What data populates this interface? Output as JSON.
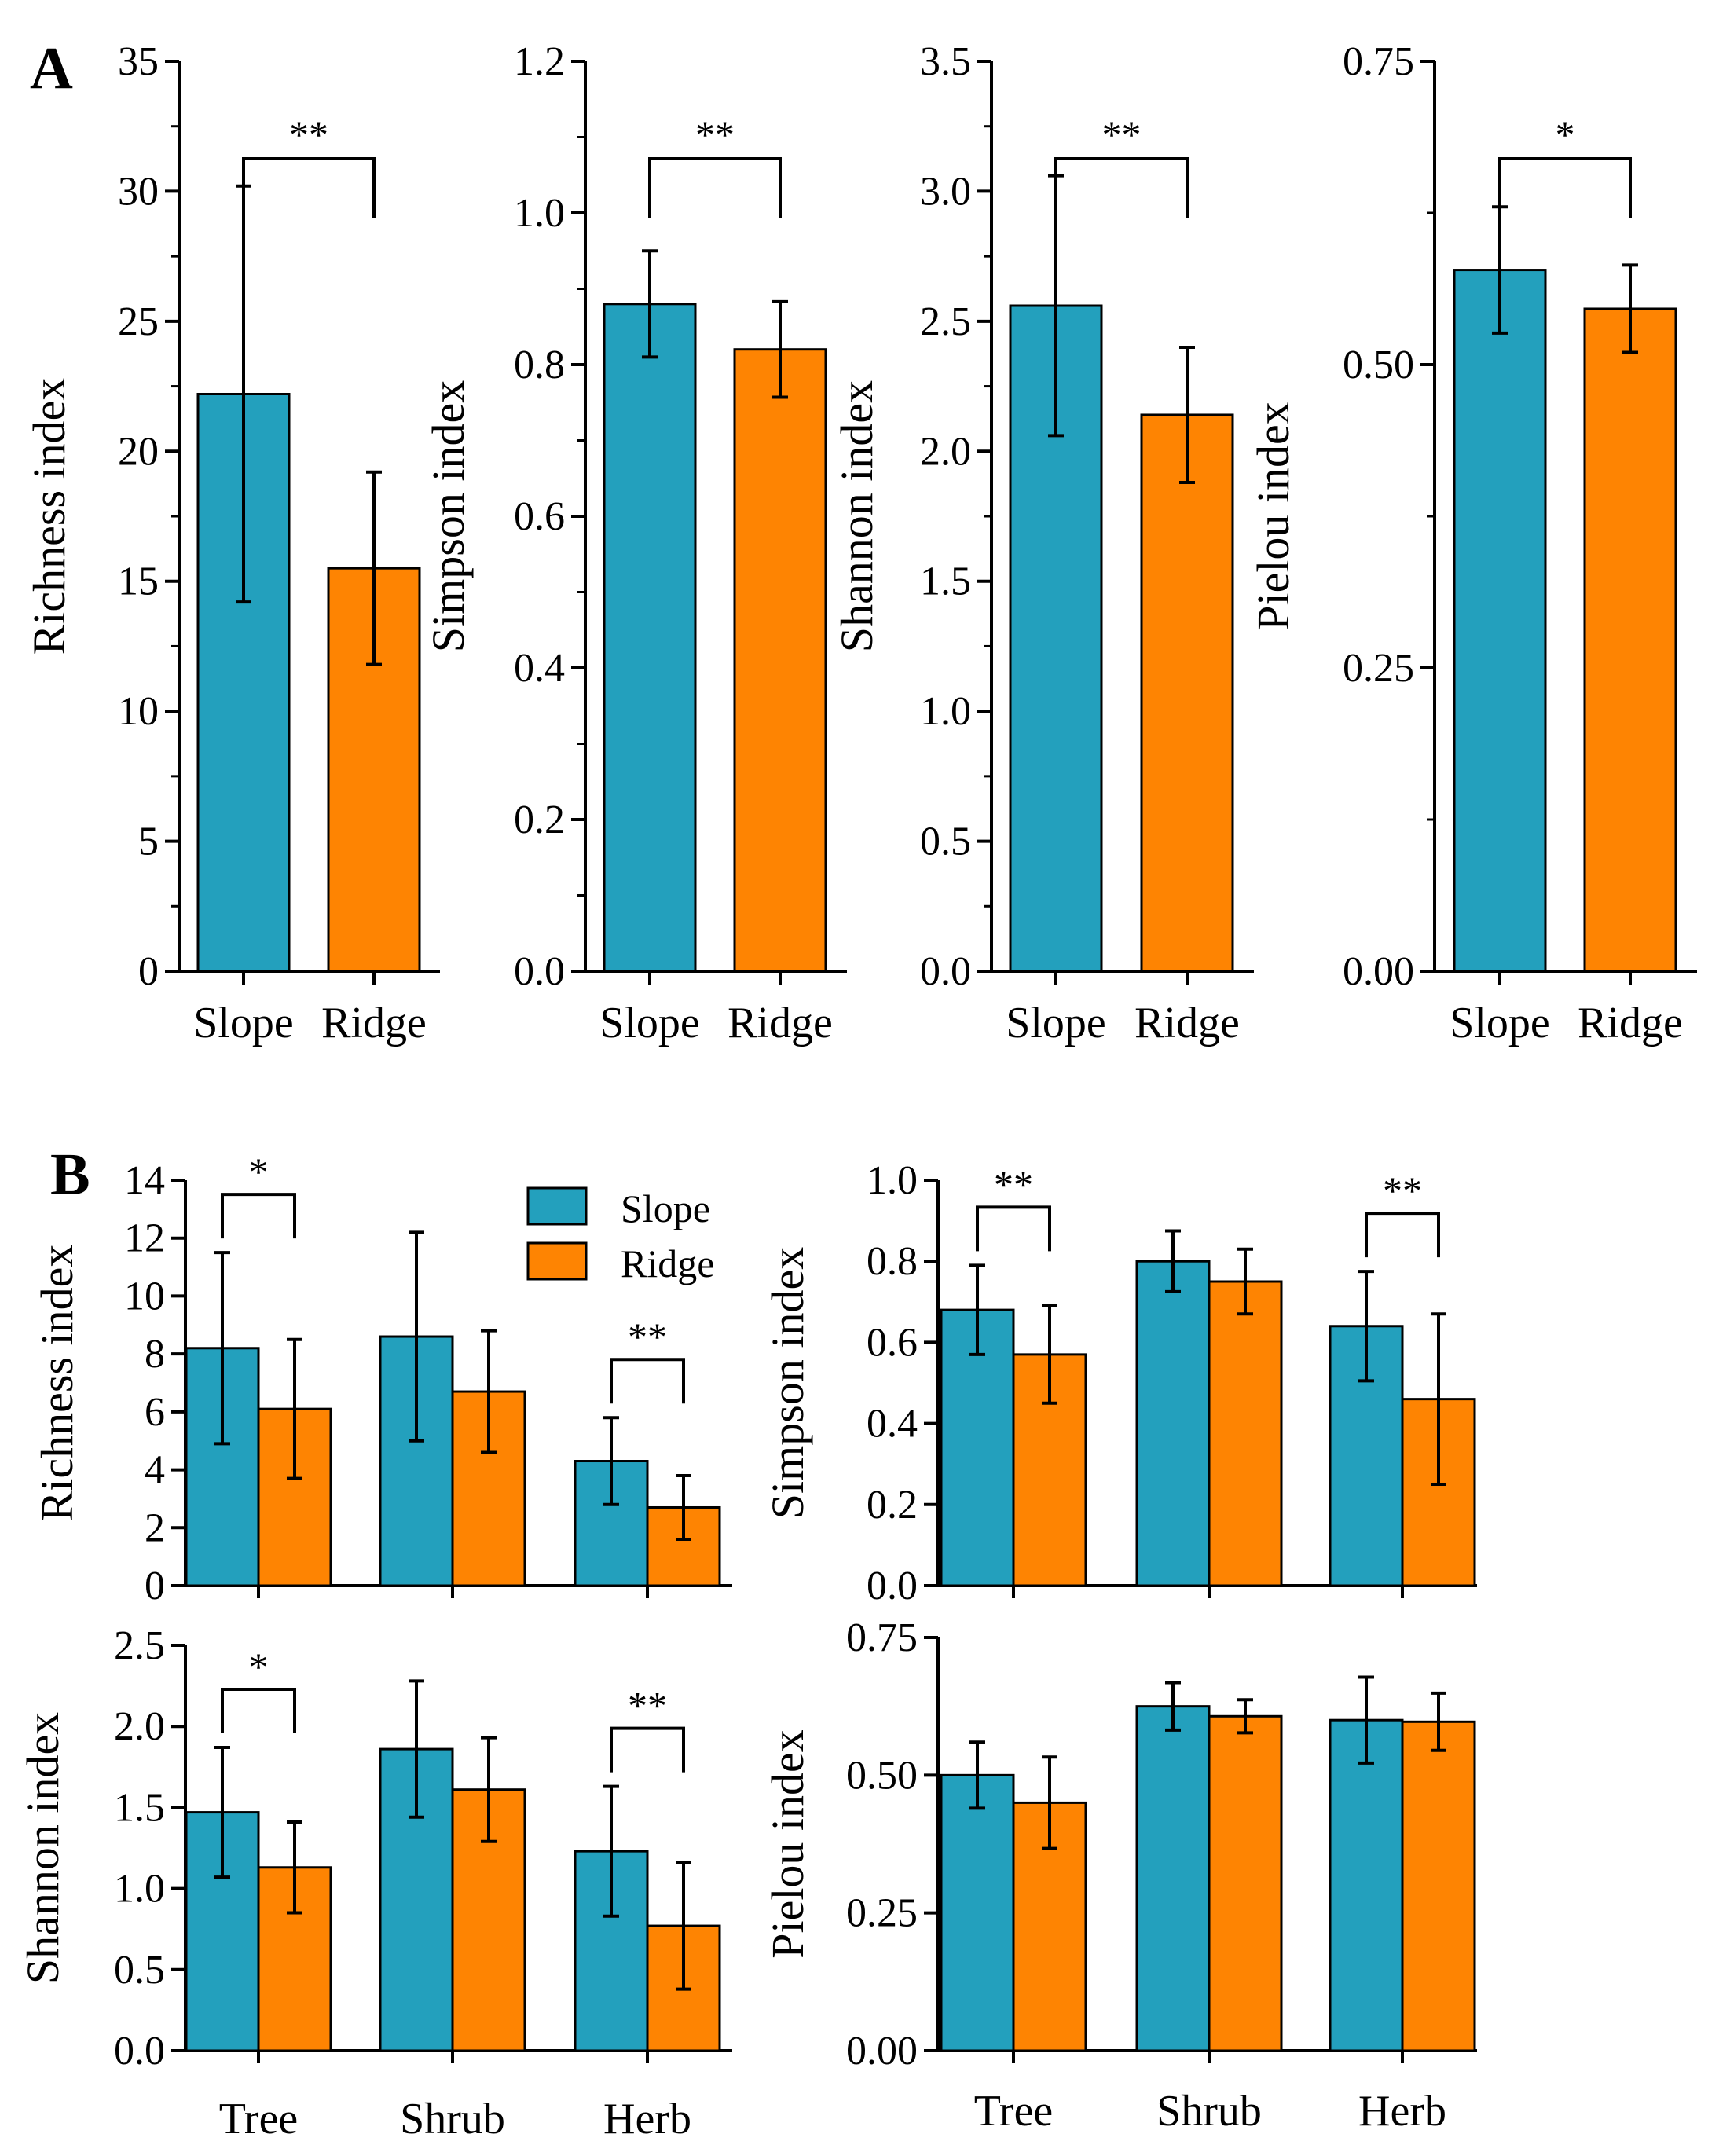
{
  "colors": {
    "slope": "#23a0bd",
    "ridge": "#fe8402",
    "axis": "#000000"
  },
  "panel_labels": [
    "A",
    "B"
  ],
  "legend": {
    "series": [
      "Slope",
      "Ridge"
    ]
  },
  "chart_data": [
    {
      "type": "bar",
      "panel": "A",
      "ylabel": "Richness index",
      "categories": [
        "Slope",
        "Ridge"
      ],
      "values": [
        22.2,
        15.5
      ],
      "errors": [
        8.0,
        3.7
      ],
      "ylim": [
        0,
        35
      ],
      "yticks": [
        0,
        5,
        10,
        15,
        20,
        25,
        30,
        35
      ],
      "ytick_labels": [
        "0",
        "5",
        "10",
        "15",
        "20",
        "25",
        "30",
        "35"
      ],
      "significance": [
        {
          "between": [
            0,
            1
          ],
          "label": "**"
        }
      ]
    },
    {
      "type": "bar",
      "panel": "A",
      "ylabel": "Simpson index",
      "categories": [
        "Slope",
        "Ridge"
      ],
      "values": [
        0.88,
        0.82
      ],
      "errors": [
        0.07,
        0.063
      ],
      "ylim": [
        0,
        1.2
      ],
      "yticks": [
        0,
        0.2,
        0.4,
        0.6,
        0.8,
        1.0,
        1.2
      ],
      "ytick_labels": [
        "0.0",
        "0.2",
        "0.4",
        "0.6",
        "0.8",
        "1.0",
        "1.2"
      ],
      "significance": [
        {
          "between": [
            0,
            1
          ],
          "label": "**"
        }
      ]
    },
    {
      "type": "bar",
      "panel": "A",
      "ylabel": "Shannon index",
      "categories": [
        "Slope",
        "Ridge"
      ],
      "values": [
        2.56,
        2.14
      ],
      "errors": [
        0.5,
        0.26
      ],
      "ylim": [
        0,
        3.5
      ],
      "yticks": [
        0,
        0.5,
        1.0,
        1.5,
        2.0,
        2.5,
        3.0,
        3.5
      ],
      "ytick_labels": [
        "0.0",
        "0.5",
        "1.0",
        "1.5",
        "2.0",
        "2.5",
        "3.0",
        "3.5"
      ],
      "significance": [
        {
          "between": [
            0,
            1
          ],
          "label": "**"
        }
      ]
    },
    {
      "type": "bar",
      "panel": "A",
      "ylabel": "Pielou index",
      "categories": [
        "Slope",
        "Ridge"
      ],
      "values": [
        0.578,
        0.546
      ],
      "errors": [
        0.052,
        0.036
      ],
      "ylim": [
        0,
        0.75
      ],
      "yticks": [
        0,
        0.25,
        0.5,
        0.75
      ],
      "ytick_labels": [
        "0.00",
        "0.25",
        "0.50",
        "0.75"
      ],
      "significance": [
        {
          "between": [
            0,
            1
          ],
          "label": "*"
        }
      ]
    },
    {
      "type": "bar",
      "panel": "B",
      "ylabel": "Richness index",
      "categories": [
        "Tree",
        "Shrub",
        "Herb"
      ],
      "series": [
        {
          "name": "Slope",
          "values": [
            8.2,
            8.6,
            4.3
          ],
          "errors": [
            3.3,
            3.6,
            1.5
          ]
        },
        {
          "name": "Ridge",
          "values": [
            6.1,
            6.7,
            2.7
          ],
          "errors": [
            2.4,
            2.1,
            1.1
          ]
        }
      ],
      "ylim": [
        0,
        14
      ],
      "yticks": [
        0,
        2,
        4,
        6,
        8,
        10,
        12,
        14
      ],
      "ytick_labels": [
        "0",
        "2",
        "4",
        "6",
        "8",
        "10",
        "12",
        "14"
      ],
      "significance": [
        {
          "category": 0,
          "label": "*"
        },
        {
          "category": 2,
          "label": "**"
        }
      ]
    },
    {
      "type": "bar",
      "panel": "B",
      "ylabel": "Simpson index",
      "categories": [
        "Tree",
        "Shrub",
        "Herb"
      ],
      "series": [
        {
          "name": "Slope",
          "values": [
            0.68,
            0.8,
            0.64
          ],
          "errors": [
            0.11,
            0.075,
            0.135
          ]
        },
        {
          "name": "Ridge",
          "values": [
            0.57,
            0.75,
            0.46
          ],
          "errors": [
            0.12,
            0.08,
            0.21
          ]
        }
      ],
      "ylim": [
        0,
        1.0
      ],
      "yticks": [
        0,
        0.2,
        0.4,
        0.6,
        0.8,
        1.0
      ],
      "ytick_labels": [
        "0.0",
        "0.2",
        "0.4",
        "0.6",
        "0.8",
        "1.0"
      ],
      "significance": [
        {
          "category": 0,
          "label": "**"
        },
        {
          "category": 2,
          "label": "**"
        }
      ]
    },
    {
      "type": "bar",
      "panel": "B",
      "ylabel": "Shannon index",
      "categories": [
        "Tree",
        "Shrub",
        "Herb"
      ],
      "series": [
        {
          "name": "Slope",
          "values": [
            1.47,
            1.86,
            1.23
          ],
          "errors": [
            0.4,
            0.42,
            0.4
          ]
        },
        {
          "name": "Ridge",
          "values": [
            1.13,
            1.61,
            0.77
          ],
          "errors": [
            0.28,
            0.32,
            0.39
          ]
        }
      ],
      "ylim": [
        0,
        2.5
      ],
      "yticks": [
        0,
        0.5,
        1.0,
        1.5,
        2.0,
        2.5
      ],
      "ytick_labels": [
        "0.0",
        "0.5",
        "1.0",
        "1.5",
        "2.0",
        "2.5"
      ],
      "significance": [
        {
          "category": 0,
          "label": "*"
        },
        {
          "category": 2,
          "label": "**"
        }
      ]
    },
    {
      "type": "bar",
      "panel": "B",
      "ylabel": "Pielou index",
      "categories": [
        "Tree",
        "Shrub",
        "Herb"
      ],
      "series": [
        {
          "name": "Slope",
          "values": [
            0.5,
            0.625,
            0.6
          ],
          "errors": [
            0.06,
            0.043,
            0.078
          ]
        },
        {
          "name": "Ridge",
          "values": [
            0.45,
            0.607,
            0.597
          ],
          "errors": [
            0.083,
            0.03,
            0.052
          ]
        }
      ],
      "ylim": [
        0,
        0.75
      ],
      "yticks": [
        0,
        0.25,
        0.5,
        0.75
      ],
      "ytick_labels": [
        "0.00",
        "0.25",
        "0.50",
        "0.75"
      ],
      "significance": []
    }
  ]
}
